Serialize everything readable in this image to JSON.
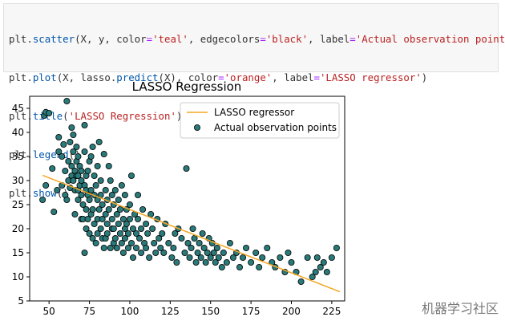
{
  "code": {
    "lines": [
      [
        {
          "t": "plt.",
          "c": "var"
        },
        {
          "t": "scatter",
          "c": "fn"
        },
        {
          "t": "(X, y, color",
          "c": "var"
        },
        {
          "t": "=",
          "c": "kw"
        },
        {
          "t": "'teal'",
          "c": "str"
        },
        {
          "t": ", edgecolors",
          "c": "var"
        },
        {
          "t": "=",
          "c": "kw"
        },
        {
          "t": "'black'",
          "c": "str"
        },
        {
          "t": ", label",
          "c": "var"
        },
        {
          "t": "=",
          "c": "kw"
        },
        {
          "t": "'Actual observation points'",
          "c": "str"
        },
        {
          "t": ")",
          "c": "var"
        }
      ],
      [
        {
          "t": "plt.",
          "c": "var"
        },
        {
          "t": "plot",
          "c": "fn"
        },
        {
          "t": "(X, lasso.",
          "c": "var"
        },
        {
          "t": "predict",
          "c": "fn"
        },
        {
          "t": "(X), color",
          "c": "var"
        },
        {
          "t": "=",
          "c": "kw"
        },
        {
          "t": "'orange'",
          "c": "str"
        },
        {
          "t": ", label",
          "c": "var"
        },
        {
          "t": "=",
          "c": "kw"
        },
        {
          "t": "'LASSO regressor'",
          "c": "str"
        },
        {
          "t": ")",
          "c": "var"
        }
      ],
      [
        {
          "t": "plt.",
          "c": "var"
        },
        {
          "t": "title",
          "c": "fn"
        },
        {
          "t": "(",
          "c": "var"
        },
        {
          "t": "'LASSO Regression'",
          "c": "str"
        },
        {
          "t": ")",
          "c": "var"
        }
      ],
      [
        {
          "t": "plt.",
          "c": "var"
        },
        {
          "t": "legend",
          "c": "fn"
        },
        {
          "t": "()",
          "c": "var"
        }
      ],
      [
        {
          "t": "plt.",
          "c": "var"
        },
        {
          "t": "show",
          "c": "fn"
        },
        {
          "t": "()",
          "c": "var"
        }
      ]
    ]
  },
  "watermark": "机器学习社区",
  "chart_data": {
    "type": "scatter",
    "title": "LASSO Regression",
    "xlabel": "",
    "ylabel": "",
    "xlim": [
      38,
      233
    ],
    "ylim": [
      5,
      47.5
    ],
    "xticks": [
      50,
      75,
      100,
      125,
      150,
      175,
      200,
      225
    ],
    "yticks": [
      5,
      10,
      15,
      20,
      25,
      30,
      35,
      40,
      45
    ],
    "legend": {
      "placement": "top-right",
      "entries": [
        "LASSO regressor",
        "Actual observation points"
      ]
    },
    "colors": {
      "scatter_fill": "#2a7a7a",
      "scatter_edge": "#000000",
      "line": "#f5a623"
    },
    "series": [
      {
        "name": "LASSO regressor",
        "kind": "line",
        "x": [
          46,
          230
        ],
        "y": [
          31.1,
          6.9
        ]
      },
      {
        "name": "Actual observation points",
        "kind": "scatter",
        "x": [
          46,
          47,
          48,
          48,
          50,
          52,
          53,
          55,
          56,
          56,
          58,
          58,
          59,
          60,
          60,
          61,
          61,
          62,
          62,
          63,
          63,
          64,
          64,
          64,
          65,
          65,
          65,
          66,
          66,
          66,
          67,
          67,
          67,
          68,
          68,
          68,
          68,
          69,
          69,
          70,
          70,
          70,
          70,
          71,
          71,
          72,
          72,
          72,
          72,
          73,
          73,
          73,
          73,
          74,
          74,
          74,
          75,
          75,
          75,
          76,
          76,
          76,
          77,
          77,
          77,
          78,
          78,
          78,
          79,
          79,
          80,
          80,
          80,
          80,
          81,
          81,
          82,
          82,
          82,
          83,
          83,
          83,
          84,
          84,
          85,
          85,
          85,
          86,
          86,
          86,
          87,
          87,
          88,
          88,
          89,
          89,
          89,
          90,
          90,
          90,
          91,
          91,
          92,
          92,
          93,
          93,
          94,
          94,
          95,
          95,
          96,
          96,
          97,
          97,
          97,
          98,
          98,
          99,
          99,
          100,
          100,
          101,
          101,
          102,
          102,
          103,
          104,
          104,
          105,
          105,
          106,
          107,
          107,
          108,
          109,
          110,
          110,
          111,
          112,
          113,
          114,
          115,
          116,
          117,
          118,
          119,
          120,
          121,
          122,
          124,
          126,
          127,
          128,
          129,
          130,
          132,
          134,
          135,
          136,
          137,
          138,
          139,
          140,
          141,
          142,
          143,
          144,
          145,
          146,
          147,
          148,
          149,
          150,
          151,
          152,
          153,
          154,
          155,
          157,
          158,
          160,
          162,
          164,
          166,
          168,
          170,
          172,
          175,
          178,
          180,
          182,
          185,
          188,
          190,
          193,
          196,
          198,
          200,
          203,
          206,
          210,
          213,
          215,
          216,
          218,
          220,
          222,
          225,
          228
        ],
        "y": [
          26,
          43.5,
          44.2,
          29,
          44,
          32.5,
          23.5,
          28,
          39,
          36,
          35,
          29,
          37.5,
          32,
          27,
          46.5,
          26,
          34,
          30,
          38,
          28.5,
          41,
          33,
          31,
          39.5,
          36,
          30,
          32,
          28,
          23,
          37,
          34,
          31,
          28,
          35,
          26,
          31,
          33,
          29,
          30,
          22,
          27,
          32,
          25,
          22,
          29,
          36,
          41.5,
          15,
          28,
          24,
          20,
          31,
          27,
          32,
          22,
          34,
          26,
          19,
          35,
          28,
          23,
          37,
          24,
          18,
          31,
          21,
          27,
          29,
          17,
          33,
          26,
          22,
          19,
          38,
          24,
          20,
          30,
          27,
          22,
          18,
          25,
          16,
          35.5,
          28,
          23,
          18,
          26,
          21,
          19,
          33,
          24,
          16,
          30,
          20,
          27,
          22,
          17,
          25,
          20,
          18,
          28,
          23,
          16,
          26,
          21,
          19,
          24,
          17,
          29,
          22,
          15,
          27,
          20,
          18,
          21,
          24,
          16,
          19,
          25,
          22,
          17,
          31,
          20,
          14,
          23,
          16,
          19,
          27,
          22,
          18,
          15,
          20,
          24,
          17,
          21,
          16,
          19,
          14,
          23,
          20,
          17,
          15,
          22,
          18,
          16,
          19,
          15,
          21,
          17,
          14,
          16,
          19,
          13,
          20,
          18,
          15,
          32.5,
          17,
          14,
          16,
          20,
          18,
          13,
          15,
          17,
          14,
          19,
          16,
          13,
          15,
          18,
          14,
          17,
          15,
          13,
          16,
          14,
          12,
          15,
          13,
          17,
          14,
          15,
          12,
          14,
          16,
          13,
          15,
          12,
          14,
          16,
          13,
          12,
          14,
          11,
          15,
          13,
          11,
          9,
          14,
          10,
          11,
          14,
          12,
          13,
          11,
          14,
          16
        ]
      }
    ]
  }
}
